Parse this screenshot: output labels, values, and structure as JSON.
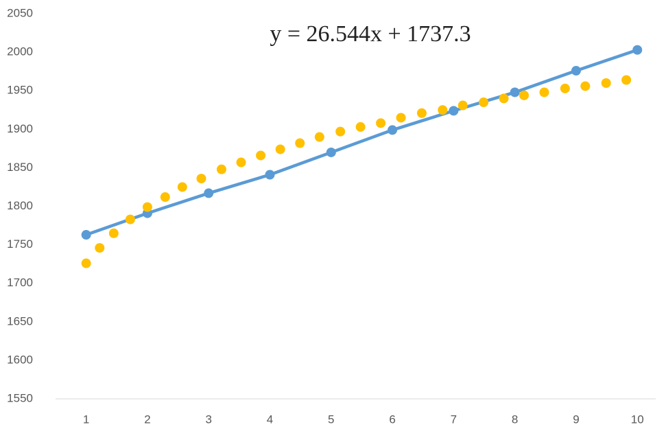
{
  "chart_data": {
    "type": "scatter",
    "annotation": "y = 26.544x + 1737.3",
    "xlim": [
      0.5,
      10.3
    ],
    "ylim": [
      1550,
      2050
    ],
    "xticks": [
      1,
      2,
      3,
      4,
      5,
      6,
      7,
      8,
      9,
      10
    ],
    "yticks": [
      1550,
      1600,
      1650,
      1700,
      1750,
      1800,
      1850,
      1900,
      1950,
      2000,
      2050
    ],
    "series": [
      {
        "color": "#5b9bd5",
        "line": true,
        "x": [
          1,
          2,
          3,
          4,
          5,
          6,
          7,
          8,
          9,
          10
        ],
        "values": [
          1763,
          1791,
          1817,
          1841,
          1870,
          1899,
          1924,
          1948,
          1976,
          2003
        ]
      },
      {
        "color": "#ffc000",
        "line": false,
        "x": [
          1.0,
          1.22,
          1.45,
          1.72,
          2.0,
          2.29,
          2.57,
          2.88,
          3.21,
          3.53,
          3.85,
          4.17,
          4.49,
          4.81,
          5.15,
          5.48,
          5.81,
          6.14,
          6.48,
          6.82,
          7.15,
          7.49,
          7.82,
          8.15,
          8.48,
          8.82,
          9.15,
          9.49,
          9.82
        ],
        "values": [
          1726,
          1746,
          1765,
          1783,
          1799,
          1812,
          1825,
          1836,
          1848,
          1857,
          1866,
          1874,
          1882,
          1890,
          1897,
          1903,
          1908,
          1915,
          1921,
          1925,
          1931,
          1935,
          1940,
          1944,
          1948,
          1953,
          1956,
          1960,
          1964
        ]
      }
    ]
  }
}
